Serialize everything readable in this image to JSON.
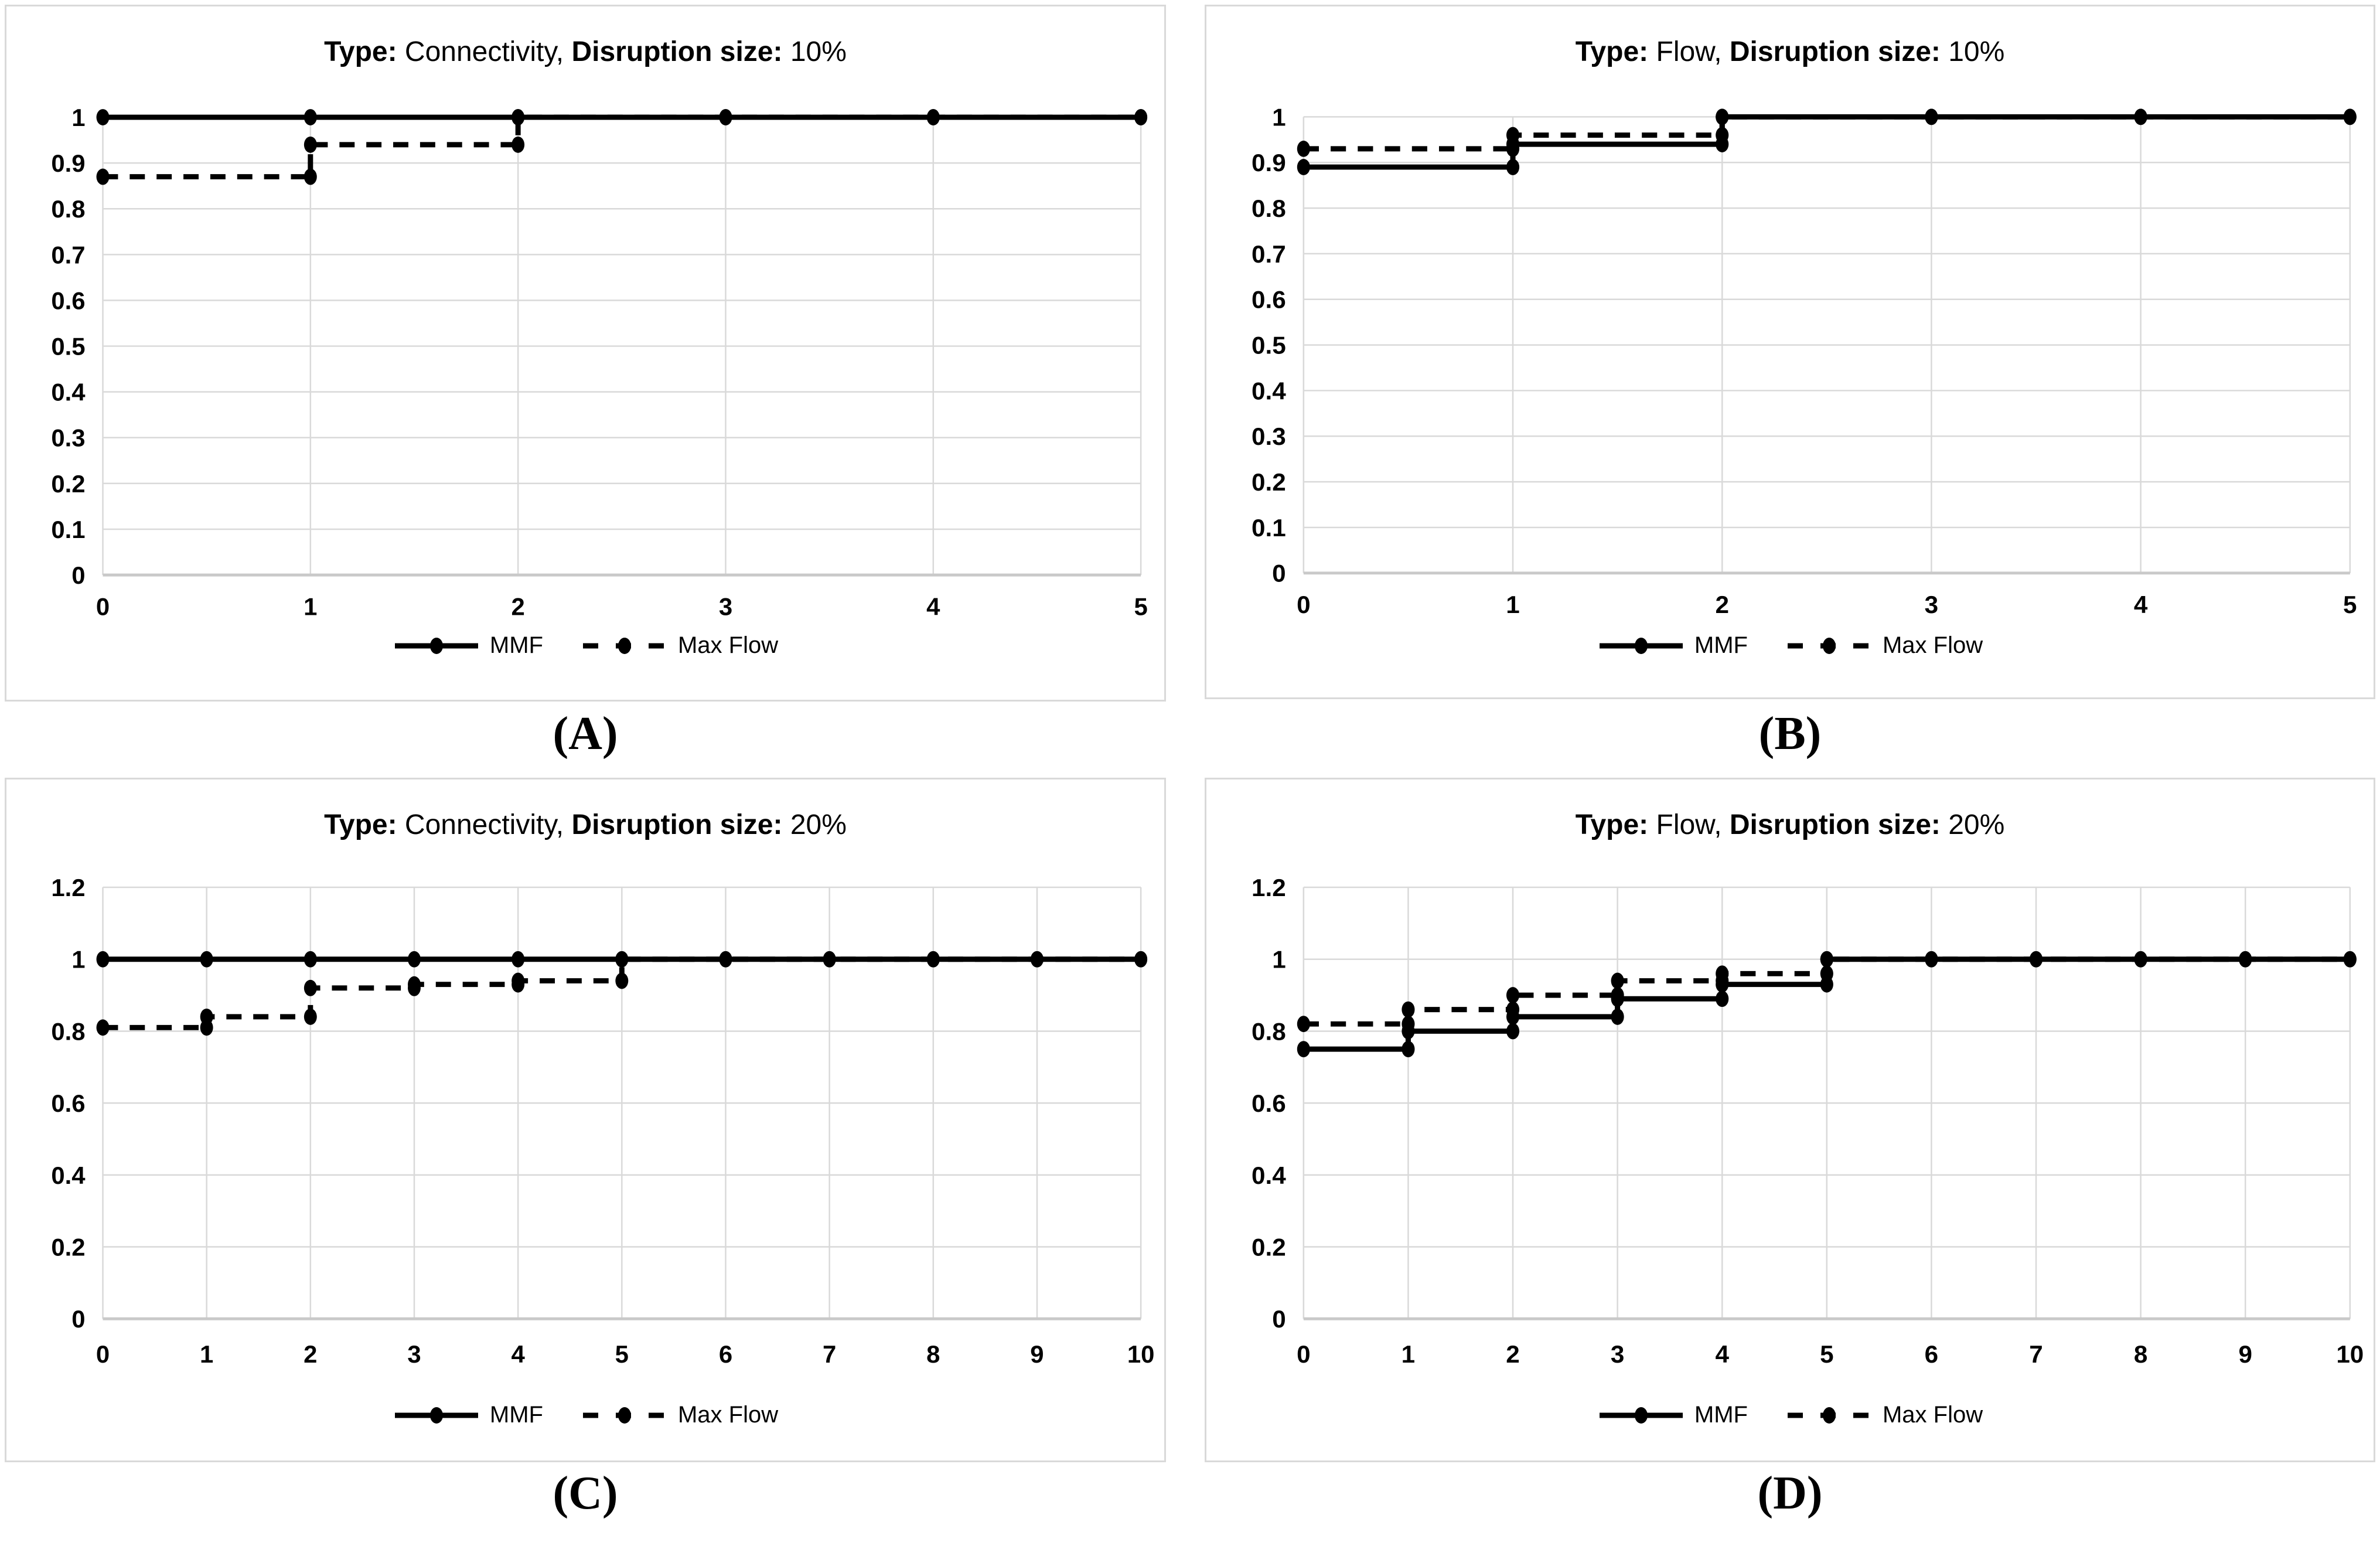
{
  "colors": {
    "line": "#000000",
    "grid": "#d9d9d9",
    "axis": "#c9c9c9",
    "panel_border": "#d9d9d9",
    "background": "#ffffff",
    "text": "#000000"
  },
  "legend": {
    "mmf_label": "MMF",
    "max_flow_label": "Max Flow"
  },
  "chart_data": [
    {
      "type": "line",
      "subtype": "step-after",
      "panel_label": "(A)",
      "title": "Type: Connectivity, Disruption size: 10%",
      "title_parts": [
        {
          "text": "Type:",
          "bold": true
        },
        {
          "text": " Connectivity, ",
          "bold": false
        },
        {
          "text": "Disruption size:",
          "bold": true
        },
        {
          "text": " 10%",
          "bold": false
        }
      ],
      "xlim": [
        0,
        5
      ],
      "x_tick_labels": [
        "0",
        "1",
        "2",
        "3",
        "4",
        "5"
      ],
      "ylim": [
        0,
        1
      ],
      "y_tick_labels": [
        "0",
        "0.1",
        "0.2",
        "0.3",
        "0.4",
        "0.5",
        "0.6",
        "0.7",
        "0.8",
        "0.9",
        "1"
      ],
      "grid": true,
      "legend_position": "bottom-center",
      "series": [
        {
          "name": "MMF",
          "line_style": "solid",
          "marker": "filled-circle",
          "color": "#000000",
          "step_levels": [
            1,
            1,
            1,
            1,
            1
          ]
        },
        {
          "name": "Max Flow",
          "line_style": "dashed",
          "marker": "filled-circle",
          "color": "#000000",
          "step_levels": [
            0.87,
            0.94,
            1,
            1,
            1
          ]
        }
      ]
    },
    {
      "type": "line",
      "subtype": "step-after",
      "panel_label": "(B)",
      "title": "Type: Flow, Disruption size: 10%",
      "title_parts": [
        {
          "text": "Type:",
          "bold": true
        },
        {
          "text": " Flow, ",
          "bold": false
        },
        {
          "text": "Disruption size:",
          "bold": true
        },
        {
          "text": " 10%",
          "bold": false
        }
      ],
      "xlim": [
        0,
        5
      ],
      "x_tick_labels": [
        "0",
        "1",
        "2",
        "3",
        "4",
        "5"
      ],
      "ylim": [
        0,
        1
      ],
      "y_tick_labels": [
        "0",
        "0.1",
        "0.2",
        "0.3",
        "0.4",
        "0.5",
        "0.6",
        "0.7",
        "0.8",
        "0.9",
        "1"
      ],
      "grid": true,
      "legend_position": "bottom-center",
      "series": [
        {
          "name": "MMF",
          "line_style": "solid",
          "marker": "filled-circle",
          "color": "#000000",
          "step_levels": [
            0.89,
            0.94,
            1,
            1,
            1
          ]
        },
        {
          "name": "Max Flow",
          "line_style": "dashed",
          "marker": "filled-circle",
          "color": "#000000",
          "step_levels": [
            0.93,
            0.96,
            1,
            1,
            1
          ]
        }
      ]
    },
    {
      "type": "line",
      "subtype": "step-after",
      "panel_label": "(C)",
      "title": "Type: Connectivity, Disruption size: 20%",
      "title_parts": [
        {
          "text": "Type:",
          "bold": true
        },
        {
          "text": " Connectivity, ",
          "bold": false
        },
        {
          "text": "Disruption size:",
          "bold": true
        },
        {
          "text": " 20%",
          "bold": false
        }
      ],
      "xlim": [
        0,
        10
      ],
      "x_tick_labels": [
        "0",
        "1",
        "2",
        "3",
        "4",
        "5",
        "6",
        "7",
        "8",
        "9",
        "10"
      ],
      "ylim": [
        0,
        1.2
      ],
      "y_tick_labels": [
        "0",
        "0.2",
        "0.4",
        "0.6",
        "0.8",
        "1",
        "1.2"
      ],
      "grid": true,
      "legend_position": "bottom-center",
      "series": [
        {
          "name": "MMF",
          "line_style": "solid",
          "marker": "filled-circle",
          "color": "#000000",
          "step_levels": [
            1,
            1,
            1,
            1,
            1,
            1,
            1,
            1,
            1,
            1
          ]
        },
        {
          "name": "Max Flow",
          "line_style": "dashed",
          "marker": "filled-circle",
          "color": "#000000",
          "step_levels": [
            0.81,
            0.84,
            0.92,
            0.93,
            0.94,
            1,
            1,
            1,
            1,
            1
          ]
        }
      ]
    },
    {
      "type": "line",
      "subtype": "step-after",
      "panel_label": "(D)",
      "title": "Type: Flow, Disruption size: 20%",
      "title_parts": [
        {
          "text": "Type:",
          "bold": true
        },
        {
          "text": " Flow, ",
          "bold": false
        },
        {
          "text": "Disruption size:",
          "bold": true
        },
        {
          "text": " 20%",
          "bold": false
        }
      ],
      "xlim": [
        0,
        10
      ],
      "x_tick_labels": [
        "0",
        "1",
        "2",
        "3",
        "4",
        "5",
        "6",
        "7",
        "8",
        "9",
        "10"
      ],
      "ylim": [
        0,
        1.2
      ],
      "y_tick_labels": [
        "0",
        "0.2",
        "0.4",
        "0.6",
        "0.8",
        "1",
        "1.2"
      ],
      "grid": true,
      "legend_position": "bottom-center",
      "series": [
        {
          "name": "MMF",
          "line_style": "solid",
          "marker": "filled-circle",
          "color": "#000000",
          "step_levels": [
            0.75,
            0.8,
            0.84,
            0.89,
            0.93,
            1,
            1,
            1,
            1,
            1
          ]
        },
        {
          "name": "Max Flow",
          "line_style": "dashed",
          "marker": "filled-circle",
          "color": "#000000",
          "step_levels": [
            0.82,
            0.86,
            0.9,
            0.94,
            0.96,
            1,
            1,
            1,
            1,
            1
          ]
        }
      ]
    }
  ]
}
